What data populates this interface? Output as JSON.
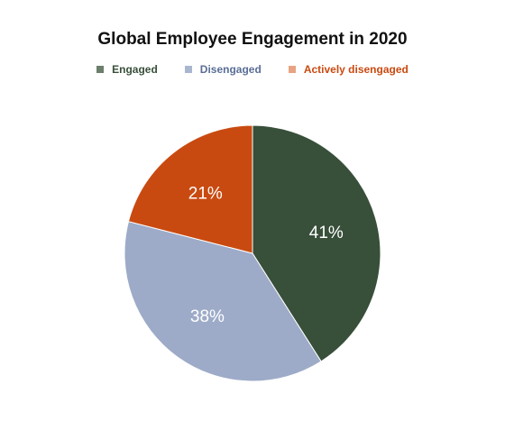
{
  "chart_data": {
    "type": "pie",
    "title": "Global Employee Engagement in 2020",
    "legend_position": "top",
    "slices": [
      {
        "name": "Engaged",
        "value": 41,
        "label": "41%",
        "color": "#384f3a",
        "legend_color": "#6b7f6c",
        "text_color": "#384f3a"
      },
      {
        "name": "Disengaged",
        "value": 38,
        "label": "38%",
        "color": "#9dabc8",
        "legend_color": "#aab6d0",
        "text_color": "#5a6e97"
      },
      {
        "name": "Actively disengaged",
        "value": 21,
        "label": "21%",
        "color": "#c94a10",
        "legend_color": "#e8a383",
        "text_color": "#c94a10"
      }
    ]
  }
}
